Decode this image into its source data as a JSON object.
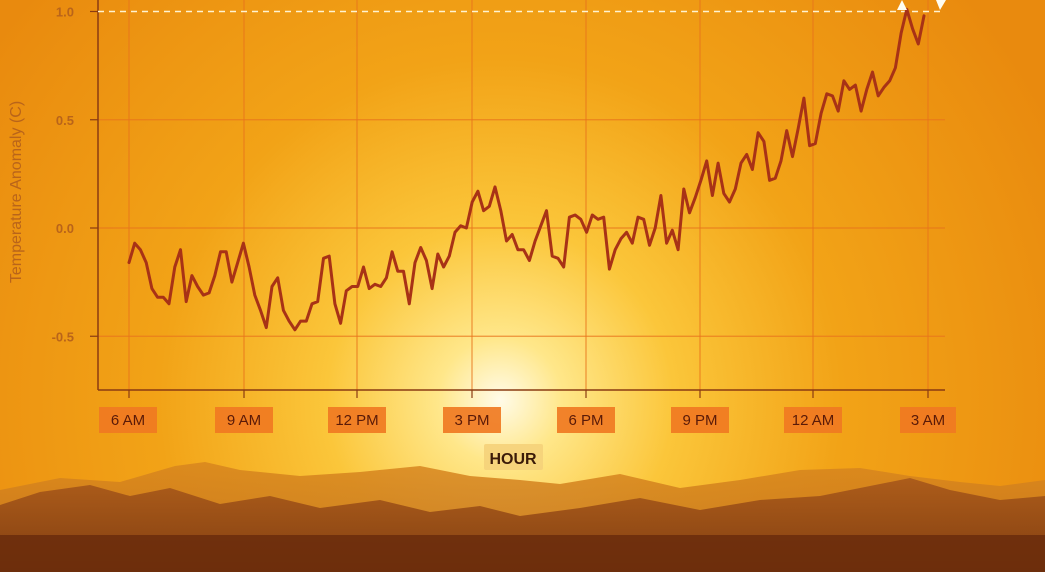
{
  "chart_data": {
    "type": "line",
    "title": "",
    "xlabel": "HOUR",
    "ylabel": "Temperature Anomaly (C)",
    "ylim": [
      -0.75,
      1.0
    ],
    "yticks": [
      "1.0",
      "0.5",
      "0.0",
      "-0.5"
    ],
    "ytick_values": [
      1.0,
      0.5,
      0.0,
      -0.5
    ],
    "xticks": [
      "6 AM",
      "9 AM",
      "12 PM",
      "3 PM",
      "6 PM",
      "9 PM",
      "12 AM",
      "3 AM"
    ],
    "grid": true,
    "reference_line": {
      "y": 1.0,
      "style": "dashed",
      "color": "#fff3d0"
    },
    "line_color": "#a83216",
    "series": [
      {
        "values": [
          -0.16,
          -0.07,
          -0.1,
          -0.16,
          -0.28,
          -0.32,
          -0.32,
          -0.35,
          -0.18,
          -0.1,
          -0.34,
          -0.22,
          -0.27,
          -0.31,
          -0.3,
          -0.22,
          -0.11,
          -0.11,
          -0.25,
          -0.16,
          -0.07,
          -0.18,
          -0.31,
          -0.38,
          -0.46,
          -0.27,
          -0.23,
          -0.38,
          -0.43,
          -0.47,
          -0.43,
          -0.43,
          -0.35,
          -0.34,
          -0.14,
          -0.13,
          -0.35,
          -0.44,
          -0.29,
          -0.27,
          -0.27,
          -0.18,
          -0.28,
          -0.26,
          -0.27,
          -0.23,
          -0.11,
          -0.2,
          -0.2,
          -0.35,
          -0.16,
          -0.09,
          -0.15,
          -0.28,
          -0.12,
          -0.18,
          -0.13,
          -0.02,
          0.01,
          0.0,
          0.12,
          0.17,
          0.08,
          0.1,
          0.19,
          0.08,
          -0.06,
          -0.03,
          -0.1,
          -0.1,
          -0.15,
          -0.06,
          0.01,
          0.08,
          -0.13,
          -0.14,
          -0.18,
          0.05,
          0.06,
          0.04,
          -0.02,
          0.06,
          0.04,
          0.05,
          -0.19,
          -0.1,
          -0.05,
          -0.02,
          -0.07,
          0.05,
          0.04,
          -0.08,
          0.0,
          0.15,
          -0.07,
          -0.01,
          -0.1,
          0.18,
          0.07,
          0.14,
          0.22,
          0.31,
          0.15,
          0.3,
          0.16,
          0.12,
          0.18,
          0.3,
          0.34,
          0.27,
          0.44,
          0.4,
          0.22,
          0.23,
          0.31,
          0.45,
          0.33,
          0.46,
          0.6,
          0.38,
          0.39,
          0.53,
          0.62,
          0.61,
          0.54,
          0.68,
          0.64,
          0.66,
          0.54,
          0.64,
          0.72,
          0.61,
          0.65,
          0.68,
          0.74,
          0.9,
          1.01,
          0.92,
          0.85,
          0.98
        ]
      }
    ]
  }
}
